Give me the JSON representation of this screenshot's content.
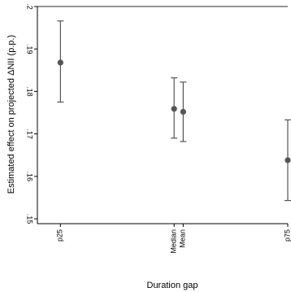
{
  "chart_data": {
    "type": "scatter",
    "title": "",
    "xlabel": "Duration gap",
    "ylabel": "Estimated effect on projected ΔNII (p.p.)",
    "ylim": [
      0.15,
      0.2
    ],
    "yticks": [
      {
        "value": 0.15,
        "label": ".15"
      },
      {
        "value": 0.16,
        "label": ".16"
      },
      {
        "value": 0.17,
        "label": ".17"
      },
      {
        "value": 0.18,
        "label": ".18"
      },
      {
        "value": 0.19,
        "label": ".19"
      },
      {
        "value": 0.2,
        "label": ".2"
      }
    ],
    "tick_label_rotation": "vertical",
    "grid": false,
    "legend": "none",
    "points": [
      {
        "label": "p25",
        "x": 25,
        "estimate": 0.1868,
        "ci_low": 0.1775,
        "ci_high": 0.1966
      },
      {
        "label": "Median",
        "x": 50,
        "estimate": 0.1759,
        "ci_low": 0.169,
        "ci_high": 0.1832
      },
      {
        "label": "Mean",
        "x": 52,
        "estimate": 0.1752,
        "ci_low": 0.1682,
        "ci_high": 0.1822
      },
      {
        "label": "p75",
        "x": 75,
        "estimate": 0.1638,
        "ci_low": 0.1543,
        "ci_high": 0.1733
      }
    ],
    "xlim": [
      21,
      75
    ],
    "colors": {
      "marker": "#555555",
      "ci": "#555555",
      "axis": "#000000"
    }
  }
}
